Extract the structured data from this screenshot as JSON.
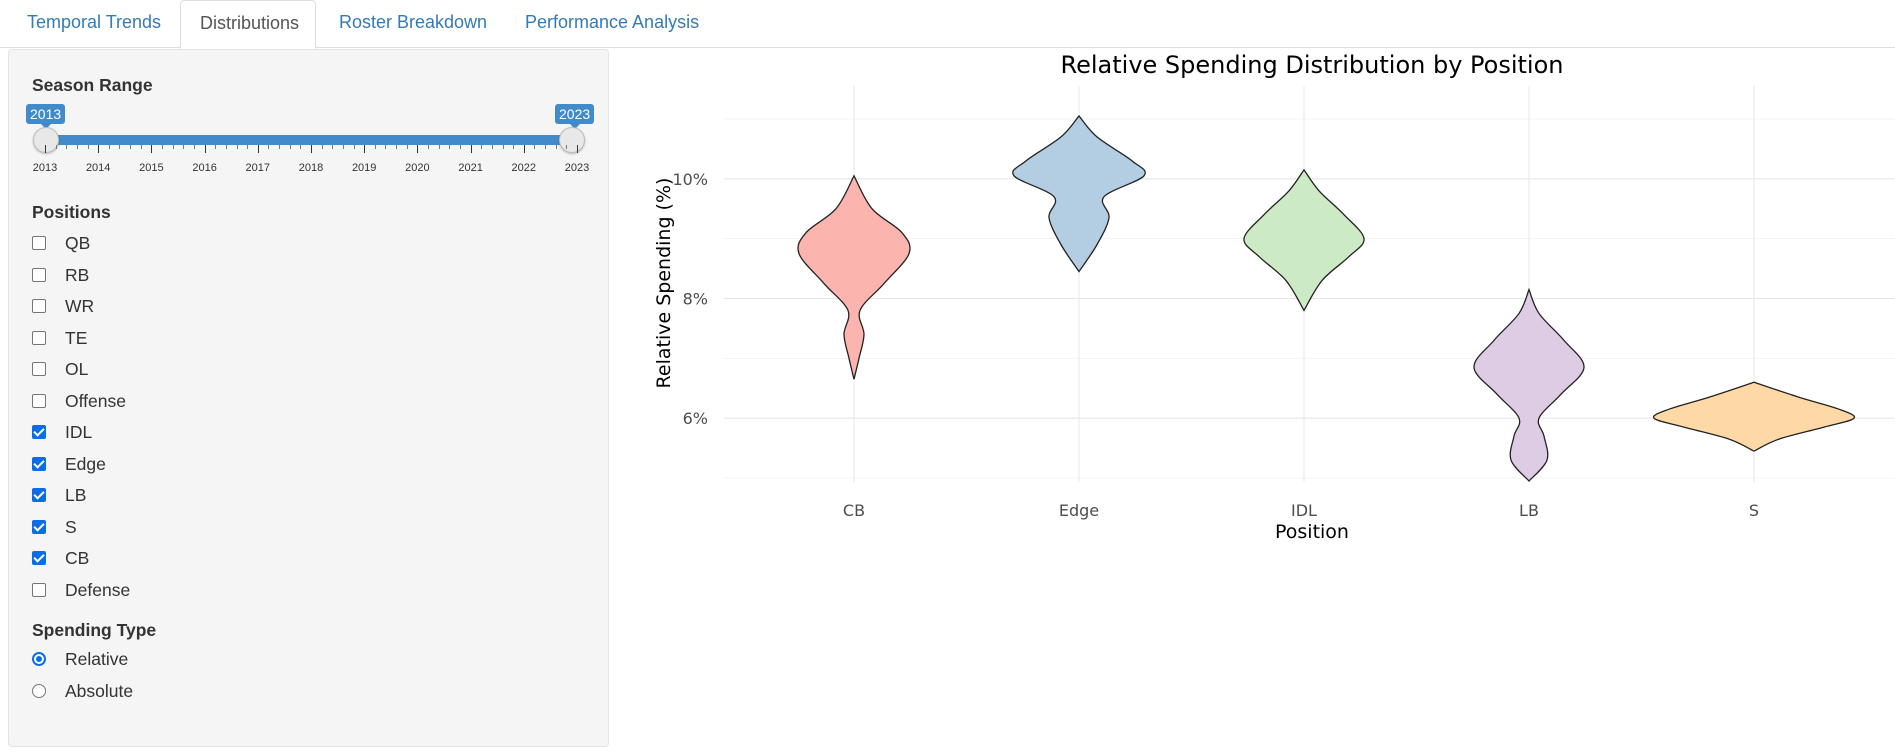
{
  "tabs": [
    {
      "label": "Temporal Trends",
      "active": false
    },
    {
      "label": "Distributions",
      "active": true
    },
    {
      "label": "Roster Breakdown",
      "active": false
    },
    {
      "label": "Performance Analysis",
      "active": false
    }
  ],
  "sidebar": {
    "season_range": {
      "label": "Season Range",
      "min": 2013,
      "max": 2023,
      "from": "2013",
      "to": "2023",
      "ticks": [
        "2013",
        "2014",
        "2015",
        "2016",
        "2017",
        "2018",
        "2019",
        "2020",
        "2021",
        "2022",
        "2023"
      ]
    },
    "positions": {
      "label": "Positions",
      "options": [
        {
          "label": "QB",
          "checked": false
        },
        {
          "label": "RB",
          "checked": false
        },
        {
          "label": "WR",
          "checked": false
        },
        {
          "label": "TE",
          "checked": false
        },
        {
          "label": "OL",
          "checked": false
        },
        {
          "label": "Offense",
          "checked": false
        },
        {
          "label": "IDL",
          "checked": true
        },
        {
          "label": "Edge",
          "checked": true
        },
        {
          "label": "LB",
          "checked": true
        },
        {
          "label": "S",
          "checked": true
        },
        {
          "label": "CB",
          "checked": true
        },
        {
          "label": "Defense",
          "checked": false
        }
      ]
    },
    "spending_type": {
      "label": "Spending Type",
      "options": [
        {
          "label": "Relative",
          "selected": true
        },
        {
          "label": "Absolute",
          "selected": false
        }
      ]
    }
  },
  "chart_data": {
    "type": "violin",
    "title": "Relative Spending Distribution by Position",
    "xlabel": "Position",
    "ylabel": "Relative Spending (%)",
    "categories": [
      "CB",
      "Edge",
      "IDL",
      "LB",
      "S"
    ],
    "ylim": [
      4.95,
      11.3
    ],
    "yticks": [
      6,
      8,
      10
    ],
    "ytick_labels": [
      "6%",
      "8%",
      "10%"
    ],
    "grid": true,
    "violins": [
      {
        "category": "CB",
        "color": "#fbb4ae",
        "min": 6.65,
        "max": 10.05,
        "density": [
          [
            6.65,
            0.0
          ],
          [
            7.0,
            0.05
          ],
          [
            7.4,
            0.1
          ],
          [
            7.8,
            0.06
          ],
          [
            8.25,
            0.3
          ],
          [
            8.75,
            0.55
          ],
          [
            9.1,
            0.48
          ],
          [
            9.5,
            0.18
          ],
          [
            10.05,
            0.0
          ]
        ]
      },
      {
        "category": "Edge",
        "color": "#b3cde3",
        "min": 8.45,
        "max": 11.05,
        "density": [
          [
            8.45,
            0.0
          ],
          [
            8.9,
            0.18
          ],
          [
            9.35,
            0.3
          ],
          [
            9.7,
            0.25
          ],
          [
            10.05,
            0.65
          ],
          [
            10.3,
            0.53
          ],
          [
            10.7,
            0.18
          ],
          [
            11.05,
            0.0
          ]
        ]
      },
      {
        "category": "IDL",
        "color": "#ccebc5",
        "min": 7.8,
        "max": 10.15,
        "density": [
          [
            7.8,
            0.0
          ],
          [
            8.3,
            0.18
          ],
          [
            8.7,
            0.45
          ],
          [
            9.0,
            0.6
          ],
          [
            9.4,
            0.4
          ],
          [
            9.8,
            0.15
          ],
          [
            10.15,
            0.0
          ]
        ]
      },
      {
        "category": "LB",
        "color": "#decbe4",
        "min": 4.95,
        "max": 8.15,
        "density": [
          [
            4.95,
            0.0
          ],
          [
            5.3,
            0.18
          ],
          [
            5.7,
            0.15
          ],
          [
            6.0,
            0.1
          ],
          [
            6.4,
            0.32
          ],
          [
            6.85,
            0.55
          ],
          [
            7.3,
            0.35
          ],
          [
            7.75,
            0.1
          ],
          [
            8.15,
            0.0
          ]
        ]
      },
      {
        "category": "S",
        "color": "#fed9a6",
        "min": 5.45,
        "max": 6.6,
        "density": [
          [
            5.45,
            0.0
          ],
          [
            5.65,
            0.25
          ],
          [
            5.85,
            0.7
          ],
          [
            6.0,
            1.0
          ],
          [
            6.15,
            0.85
          ],
          [
            6.35,
            0.45
          ],
          [
            6.6,
            0.0
          ]
        ]
      }
    ]
  }
}
